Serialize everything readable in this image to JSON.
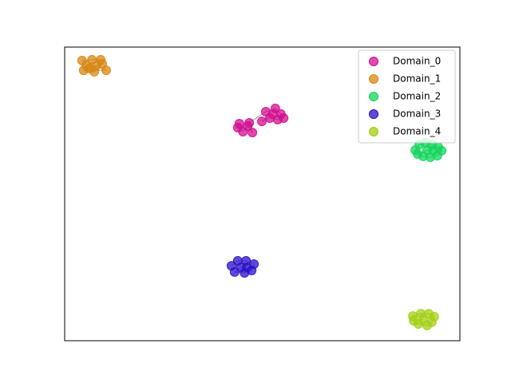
{
  "chart_data": {
    "type": "scatter",
    "xlim": [
      0,
      100
    ],
    "ylim": [
      0,
      100
    ],
    "legend": "upper right",
    "grid": false,
    "series": [
      {
        "name": "Domain_0",
        "color": "#d10d8f",
        "x": [
          44.2,
          43.8,
          45.1,
          46.3,
          47.5,
          46.7,
          50.9,
          53.3,
          54.7,
          55.4,
          53.9,
          51.9,
          49.9,
          52.7
        ],
        "values": [
          73.9,
          72.6,
          71.2,
          73.1,
          70.9,
          74.2,
          78.0,
          79.1,
          77.2,
          75.8,
          75.3,
          75.8,
          74.7,
          77.2
        ]
      },
      {
        "name": "Domain_1",
        "color": "#d9860f",
        "x": [
          4.4,
          6.9,
          9.1,
          5.5,
          7.9,
          10.5,
          4.8,
          7.5,
          9.5,
          6.3
        ],
        "values": [
          95.4,
          95.7,
          95.7,
          93.8,
          93.5,
          92.1,
          92.1,
          91.6,
          94.3,
          92.7
        ]
      },
      {
        "name": "Domain_2",
        "color": "#0fd65a",
        "x": [
          88.7,
          89.7,
          91.3,
          92.9,
          94.5,
          95.4,
          94.3,
          92.5,
          90.7,
          89.3,
          91.7,
          93.3
        ],
        "values": [
          64.9,
          66.8,
          67.4,
          66.8,
          66.0,
          64.7,
          63.0,
          62.5,
          62.8,
          63.6,
          64.9,
          64.7
        ]
      },
      {
        "name": "Domain_3",
        "color": "#2a0fc9",
        "x": [
          42.2,
          43.8,
          45.9,
          47.9,
          47.3,
          45.5,
          43.0,
          44.6,
          46.1
        ],
        "values": [
          25.5,
          27.2,
          27.2,
          26.1,
          23.9,
          23.1,
          23.4,
          25.0,
          25.0
        ]
      },
      {
        "name": "Domain_4",
        "color": "#a3cf0f",
        "x": [
          88.1,
          90.1,
          92.1,
          93.5,
          92.9,
          91.7,
          89.5,
          88.3,
          90.7
        ],
        "values": [
          8.4,
          9.2,
          9.2,
          8.2,
          6.3,
          5.2,
          5.7,
          6.8,
          7.3
        ]
      }
    ]
  }
}
